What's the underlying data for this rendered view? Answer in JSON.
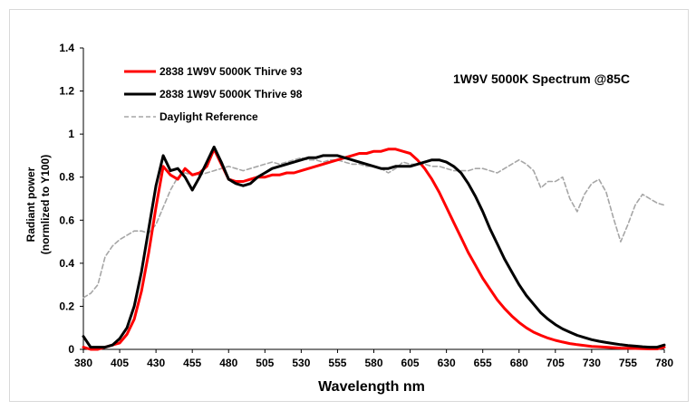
{
  "chart_data": {
    "type": "line",
    "title": "1W9V 5000K Spectrum @85C",
    "xlabel": "Wavelength nm",
    "ylabel_line1": "Radiant power",
    "ylabel_line2": "(normlized to Y100)",
    "xlim": [
      380,
      780
    ],
    "ylim": [
      0,
      1.4
    ],
    "x_ticks": [
      380,
      405,
      430,
      455,
      480,
      505,
      530,
      555,
      580,
      605,
      630,
      655,
      680,
      705,
      730,
      755,
      780
    ],
    "y_ticks": [
      0,
      0.2,
      0.4,
      0.6,
      0.8,
      1,
      1.2,
      1.4
    ],
    "y_tick_labels": [
      "0",
      "0.2",
      "0.4",
      "0.6",
      "0.8",
      "1",
      "1.2",
      "1.4"
    ],
    "legend_position": "top-left",
    "series": [
      {
        "name": "2838 1W9V 5000K Thirve 93",
        "color": "#ff0000",
        "dash": "solid",
        "x": [
          380,
          385,
          390,
          395,
          400,
          405,
          410,
          415,
          420,
          425,
          430,
          435,
          440,
          445,
          450,
          455,
          460,
          465,
          470,
          475,
          480,
          485,
          490,
          495,
          500,
          505,
          510,
          515,
          520,
          525,
          530,
          535,
          540,
          545,
          550,
          555,
          560,
          565,
          570,
          575,
          580,
          585,
          590,
          595,
          600,
          605,
          610,
          615,
          620,
          625,
          630,
          635,
          640,
          645,
          650,
          655,
          660,
          665,
          670,
          675,
          680,
          685,
          690,
          695,
          700,
          705,
          710,
          715,
          720,
          725,
          730,
          735,
          740,
          745,
          750,
          755,
          760,
          765,
          770,
          775,
          780
        ],
        "y": [
          0.01,
          0.0,
          0.0,
          0.01,
          0.02,
          0.03,
          0.07,
          0.14,
          0.27,
          0.45,
          0.66,
          0.85,
          0.81,
          0.79,
          0.84,
          0.81,
          0.82,
          0.85,
          0.93,
          0.86,
          0.79,
          0.78,
          0.78,
          0.79,
          0.8,
          0.8,
          0.81,
          0.81,
          0.82,
          0.82,
          0.83,
          0.84,
          0.85,
          0.86,
          0.87,
          0.88,
          0.89,
          0.9,
          0.91,
          0.91,
          0.92,
          0.92,
          0.93,
          0.93,
          0.92,
          0.91,
          0.88,
          0.84,
          0.79,
          0.73,
          0.66,
          0.59,
          0.52,
          0.45,
          0.39,
          0.33,
          0.28,
          0.23,
          0.19,
          0.155,
          0.125,
          0.1,
          0.08,
          0.065,
          0.052,
          0.042,
          0.034,
          0.027,
          0.022,
          0.018,
          0.014,
          0.012,
          0.01,
          0.008,
          0.006,
          0.005,
          0.004,
          0.003,
          0.002,
          0.002,
          0.01
        ]
      },
      {
        "name": "2838 1W9V 5000K Thrive 98",
        "color": "#000000",
        "dash": "solid",
        "x": [
          380,
          385,
          390,
          395,
          400,
          405,
          410,
          415,
          420,
          425,
          430,
          435,
          440,
          445,
          450,
          455,
          460,
          465,
          470,
          475,
          480,
          485,
          490,
          495,
          500,
          505,
          510,
          515,
          520,
          525,
          530,
          535,
          540,
          545,
          550,
          555,
          560,
          565,
          570,
          575,
          580,
          585,
          590,
          595,
          600,
          605,
          610,
          615,
          620,
          625,
          630,
          635,
          640,
          645,
          650,
          655,
          660,
          665,
          670,
          675,
          680,
          685,
          690,
          695,
          700,
          705,
          710,
          715,
          720,
          725,
          730,
          735,
          740,
          745,
          750,
          755,
          760,
          765,
          770,
          775,
          780
        ],
        "y": [
          0.06,
          0.01,
          0.01,
          0.01,
          0.02,
          0.05,
          0.1,
          0.2,
          0.36,
          0.56,
          0.76,
          0.9,
          0.83,
          0.84,
          0.8,
          0.74,
          0.8,
          0.87,
          0.94,
          0.87,
          0.79,
          0.77,
          0.76,
          0.77,
          0.8,
          0.82,
          0.84,
          0.85,
          0.86,
          0.87,
          0.88,
          0.89,
          0.89,
          0.9,
          0.9,
          0.9,
          0.89,
          0.88,
          0.87,
          0.86,
          0.85,
          0.84,
          0.84,
          0.85,
          0.85,
          0.85,
          0.86,
          0.87,
          0.88,
          0.88,
          0.87,
          0.85,
          0.82,
          0.77,
          0.71,
          0.64,
          0.56,
          0.49,
          0.42,
          0.36,
          0.3,
          0.25,
          0.21,
          0.17,
          0.14,
          0.115,
          0.095,
          0.08,
          0.065,
          0.055,
          0.045,
          0.038,
          0.032,
          0.027,
          0.022,
          0.018,
          0.015,
          0.012,
          0.01,
          0.01,
          0.02
        ]
      },
      {
        "name": "Daylight Reference",
        "color": "#a6a6a6",
        "dash": "dashed",
        "x": [
          380,
          385,
          390,
          395,
          400,
          405,
          410,
          415,
          420,
          425,
          430,
          435,
          440,
          445,
          450,
          455,
          460,
          465,
          470,
          475,
          480,
          485,
          490,
          495,
          500,
          505,
          510,
          515,
          520,
          525,
          530,
          535,
          540,
          545,
          550,
          555,
          560,
          565,
          570,
          575,
          580,
          585,
          590,
          595,
          600,
          605,
          610,
          615,
          620,
          625,
          630,
          635,
          640,
          645,
          650,
          655,
          660,
          665,
          670,
          675,
          680,
          685,
          690,
          695,
          700,
          705,
          710,
          715,
          720,
          725,
          730,
          735,
          740,
          745,
          750,
          755,
          760,
          765,
          770,
          775,
          780
        ],
        "y": [
          0.24,
          0.26,
          0.3,
          0.43,
          0.48,
          0.51,
          0.53,
          0.55,
          0.55,
          0.54,
          0.58,
          0.66,
          0.74,
          0.8,
          0.82,
          0.81,
          0.81,
          0.82,
          0.83,
          0.84,
          0.85,
          0.84,
          0.83,
          0.84,
          0.85,
          0.86,
          0.87,
          0.86,
          0.87,
          0.88,
          0.89,
          0.88,
          0.88,
          0.87,
          0.88,
          0.88,
          0.87,
          0.86,
          0.86,
          0.85,
          0.85,
          0.84,
          0.82,
          0.84,
          0.87,
          0.86,
          0.86,
          0.86,
          0.85,
          0.85,
          0.84,
          0.83,
          0.83,
          0.83,
          0.84,
          0.84,
          0.83,
          0.82,
          0.84,
          0.86,
          0.88,
          0.86,
          0.83,
          0.75,
          0.78,
          0.78,
          0.8,
          0.7,
          0.64,
          0.72,
          0.77,
          0.79,
          0.73,
          0.61,
          0.5,
          0.58,
          0.67,
          0.72,
          0.7,
          0.68,
          0.67
        ]
      }
    ]
  }
}
